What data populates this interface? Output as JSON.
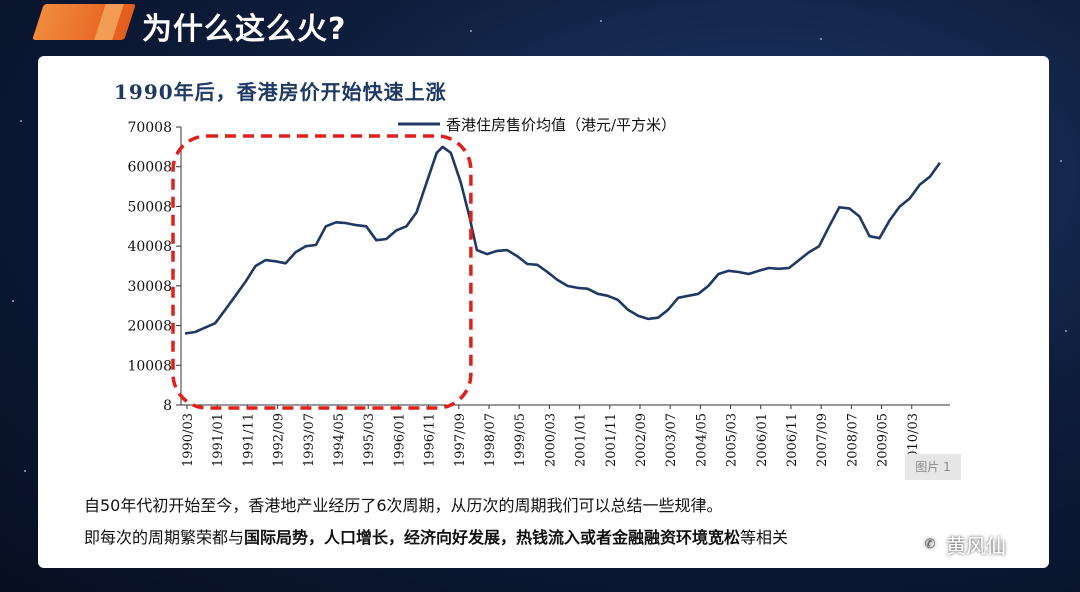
{
  "slide": {
    "title": "为什么这么火?"
  },
  "chart_data": {
    "type": "line",
    "title": "1990年后，香港房价开始快速上涨",
    "legend": "香港住房售价均值（港元/平方米）",
    "legend_placement": "top",
    "xlabel": "",
    "ylabel": "",
    "ylim": [
      8,
      70008
    ],
    "yticks": [
      "70008",
      "60008",
      "50008",
      "40008",
      "30008",
      "20008",
      "10008",
      "8"
    ],
    "xticks": [
      "1990/03",
      "1991/01",
      "1991/11",
      "1992/09",
      "1993/07",
      "1994/05",
      "1995/03",
      "1996/01",
      "1996/11",
      "1997/09",
      "1998/07",
      "1999/05",
      "2000/03",
      "2001/01",
      "2001/11",
      "2002/09",
      "2003/07",
      "2004/05",
      "2005/03",
      "2006/01",
      "2006/11",
      "2007/09",
      "2008/07",
      "2009/05",
      "2010/03"
    ],
    "series": [
      {
        "name": "香港住房售价均值（港元/平方米）",
        "color": "#1f3864",
        "points": [
          [
            0,
            18000
          ],
          [
            0.5,
            18400
          ],
          [
            1,
            19500
          ],
          [
            1.5,
            20600
          ],
          [
            2,
            24000
          ],
          [
            2.5,
            27500
          ],
          [
            3,
            31000
          ],
          [
            3.5,
            35000
          ],
          [
            4,
            36500
          ],
          [
            4.5,
            36200
          ],
          [
            5,
            35700
          ],
          [
            5.5,
            38500
          ],
          [
            6,
            40000
          ],
          [
            6.5,
            40300
          ],
          [
            7,
            45000
          ],
          [
            7.5,
            46000
          ],
          [
            8,
            45800
          ],
          [
            8.5,
            45300
          ],
          [
            9,
            45000
          ],
          [
            9.5,
            41500
          ],
          [
            10,
            41800
          ],
          [
            10.5,
            44000
          ],
          [
            11,
            45000
          ],
          [
            11.5,
            48500
          ],
          [
            12,
            56000
          ],
          [
            12.5,
            63500
          ],
          [
            12.8,
            65000
          ],
          [
            13.2,
            63500
          ],
          [
            13.7,
            56000
          ],
          [
            14.1,
            48000
          ],
          [
            14.5,
            39000
          ],
          [
            15,
            38000
          ],
          [
            15.5,
            38800
          ],
          [
            16,
            39000
          ],
          [
            16.5,
            37500
          ],
          [
            17,
            35500
          ],
          [
            17.5,
            35300
          ],
          [
            18,
            33500
          ],
          [
            18.5,
            31500
          ],
          [
            19,
            30000
          ],
          [
            19.5,
            29500
          ],
          [
            20,
            29300
          ],
          [
            20.5,
            28000
          ],
          [
            21,
            27500
          ],
          [
            21.5,
            26500
          ],
          [
            22,
            24000
          ],
          [
            22.5,
            22500
          ],
          [
            23,
            21700
          ],
          [
            23.5,
            22000
          ],
          [
            24,
            24000
          ],
          [
            24.5,
            27000
          ],
          [
            25,
            27500
          ],
          [
            25.5,
            28000
          ],
          [
            26,
            30000
          ],
          [
            26.5,
            33000
          ],
          [
            27,
            33800
          ],
          [
            27.5,
            33500
          ],
          [
            28,
            33000
          ],
          [
            28.5,
            33800
          ],
          [
            29,
            34500
          ],
          [
            29.5,
            34300
          ],
          [
            30,
            34500
          ],
          [
            30.5,
            36500
          ],
          [
            31,
            38500
          ],
          [
            31.5,
            40000
          ],
          [
            32,
            45000
          ],
          [
            32.5,
            49800
          ],
          [
            33,
            49500
          ],
          [
            33.5,
            47500
          ],
          [
            34,
            42500
          ],
          [
            34.5,
            42000
          ],
          [
            35,
            46500
          ],
          [
            35.5,
            50000
          ],
          [
            36,
            52000
          ],
          [
            36.5,
            55500
          ],
          [
            37,
            57500
          ],
          [
            37.5,
            61000
          ]
        ]
      }
    ],
    "highlight_box": {
      "x_from": -0.2,
      "x_to": 14.2,
      "style": "red dashed rounded rectangle"
    }
  },
  "badge": {
    "label": "图片 1"
  },
  "notes": {
    "line1": "自50年代初开始至今，香港地产业经历了6次周期，从历次的周期我们可以总结一些规律。",
    "line2_prefix": "即每次的周期繁荣都与",
    "line2_bold": "国际局势，人口增长，经济向好发展，热钱流入或者金融融资环境宽松",
    "line2_suffix": "等相关"
  },
  "watermark": {
    "name": "黄风仙",
    "icon": "wechat-icon"
  }
}
